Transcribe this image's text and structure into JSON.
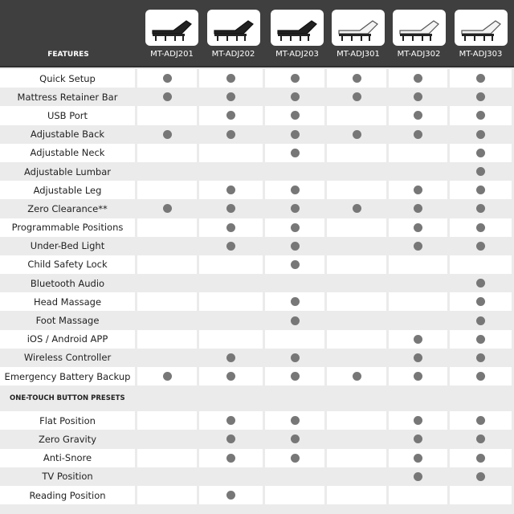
{
  "header": {
    "features_label": "FEATURES",
    "models": [
      "MT-ADJ201",
      "MT-ADJ202",
      "MT-ADJ203",
      "MT-ADJ301",
      "MT-ADJ302",
      "MT-ADJ303"
    ],
    "bed_colors": [
      "#222222",
      "#222222",
      "#222222",
      "#f4f4f4",
      "#f4f4f4",
      "#f4f4f4"
    ]
  },
  "colors": {
    "header_bg": "#3f3f3f",
    "dot": "#777777",
    "row_alt": "#ebebeb"
  },
  "features": [
    {
      "label": "Quick Setup",
      "has": [
        1,
        1,
        1,
        1,
        1,
        1
      ]
    },
    {
      "label": "Mattress Retainer Bar",
      "has": [
        1,
        1,
        1,
        1,
        1,
        1
      ]
    },
    {
      "label": "USB Port",
      "has": [
        0,
        1,
        1,
        0,
        1,
        1
      ]
    },
    {
      "label": "Adjustable Back",
      "has": [
        1,
        1,
        1,
        1,
        1,
        1
      ]
    },
    {
      "label": "Adjustable Neck",
      "has": [
        0,
        0,
        1,
        0,
        0,
        1
      ]
    },
    {
      "label": "Adjustable Lumbar",
      "has": [
        0,
        0,
        0,
        0,
        0,
        1
      ]
    },
    {
      "label": "Adjustable Leg",
      "has": [
        0,
        1,
        1,
        0,
        1,
        1
      ]
    },
    {
      "label": "Zero Clearance**",
      "has": [
        1,
        1,
        1,
        1,
        1,
        1
      ]
    },
    {
      "label": "Programmable Positions",
      "has": [
        0,
        1,
        1,
        0,
        1,
        1
      ]
    },
    {
      "label": "Under-Bed Light",
      "has": [
        0,
        1,
        1,
        0,
        1,
        1
      ]
    },
    {
      "label": "Child Safety Lock",
      "has": [
        0,
        0,
        1,
        0,
        0,
        0
      ]
    },
    {
      "label": "Bluetooth Audio",
      "has": [
        0,
        0,
        0,
        0,
        0,
        1
      ]
    },
    {
      "label": "Head Massage",
      "has": [
        0,
        0,
        1,
        0,
        0,
        1
      ]
    },
    {
      "label": "Foot Massage",
      "has": [
        0,
        0,
        1,
        0,
        0,
        1
      ]
    },
    {
      "label": "iOS / Android APP",
      "has": [
        0,
        0,
        0,
        0,
        1,
        1
      ]
    },
    {
      "label": "Wireless Controller",
      "has": [
        0,
        1,
        1,
        0,
        1,
        1
      ]
    },
    {
      "label": "Emergency Battery Backup",
      "has": [
        1,
        1,
        1,
        1,
        1,
        1
      ]
    }
  ],
  "presets_section": {
    "title": "ONE-TOUCH BUTTON PRESETS",
    "items": [
      {
        "label": "Flat Position",
        "has": [
          0,
          1,
          1,
          0,
          1,
          1
        ]
      },
      {
        "label": "Zero Gravity",
        "has": [
          0,
          1,
          1,
          0,
          1,
          1
        ]
      },
      {
        "label": "Anti-Snore",
        "has": [
          0,
          1,
          1,
          0,
          1,
          1
        ]
      },
      {
        "label": "TV Position",
        "has": [
          0,
          0,
          0,
          0,
          1,
          1
        ]
      },
      {
        "label": "Reading Position",
        "has": [
          0,
          1,
          0,
          0,
          0,
          0
        ]
      }
    ]
  }
}
